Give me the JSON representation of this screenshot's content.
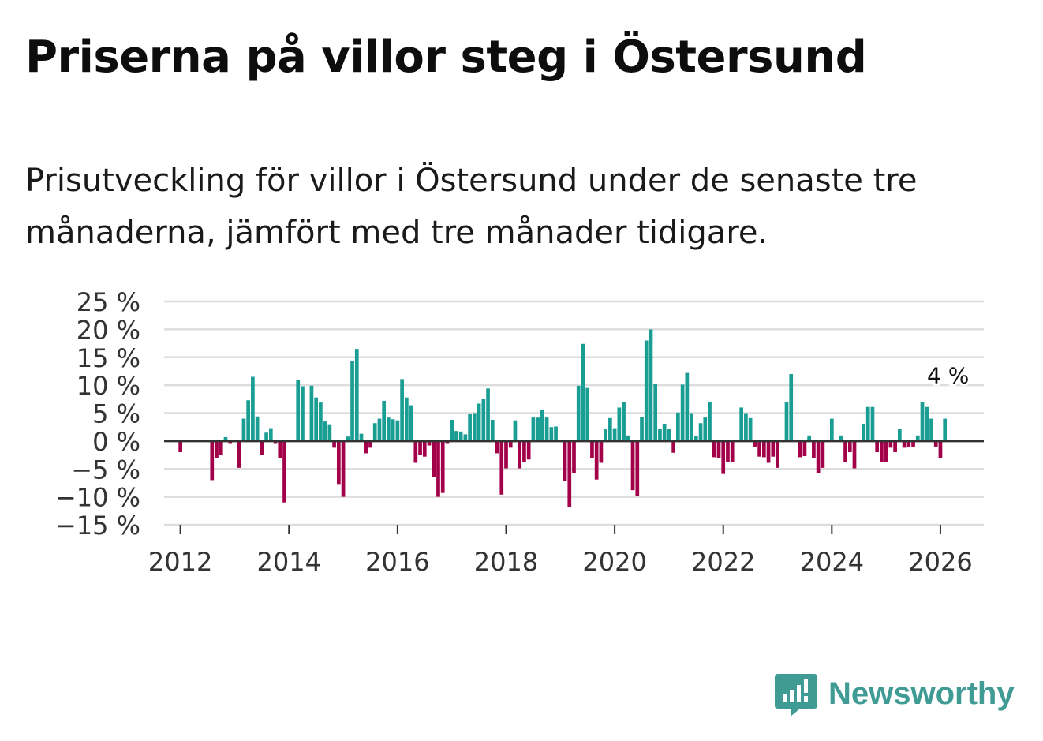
{
  "title": "Priserna på villor steg i Östersund",
  "subtitle": "Prisutveckling för villor i Östersund under de senaste tre månaderna, jämfört med tre månader tidigare.",
  "brand": "Newsworthy",
  "colors": {
    "positive": "#1a9e94",
    "negative": "#a3004a",
    "grid": "#dddddd",
    "zero": "#333333",
    "brand": "#3f9b94"
  },
  "chart_data": {
    "type": "bar",
    "unit": " %",
    "ylim": [
      -15,
      25
    ],
    "yticks": [
      25,
      20,
      15,
      10,
      5,
      0,
      -5,
      -10,
      -15
    ],
    "ytick_labels": [
      "25 %",
      "20 %",
      "15 %",
      "10 %",
      "5 %",
      "0 %",
      "−5 %",
      "−10 %",
      "−15 %"
    ],
    "xlim": [
      2011.7,
      2026.8
    ],
    "xticks": [
      2012,
      2014,
      2016,
      2018,
      2020,
      2022,
      2024,
      2026
    ],
    "xtick_labels": [
      "2012",
      "2014",
      "2016",
      "2018",
      "2020",
      "2022",
      "2024",
      "2026"
    ],
    "annotation": {
      "label": "4 %",
      "x": 2026.0833,
      "value": 4
    },
    "series": [
      {
        "name": "Prisutveckling",
        "x": [
          2011.9167,
          2012.0,
          2012.0833,
          2012.1667,
          2012.25,
          2012.3333,
          2012.4167,
          2012.5,
          2012.5833,
          2012.6667,
          2012.75,
          2012.8333,
          2012.9167,
          2013.0,
          2013.0833,
          2013.1667,
          2013.25,
          2013.3333,
          2013.4167,
          2013.5,
          2013.5833,
          2013.6667,
          2013.75,
          2013.8333,
          2013.9167,
          2014.0,
          2014.0833,
          2014.1667,
          2014.25,
          2014.3333,
          2014.4167,
          2014.5,
          2014.5833,
          2014.6667,
          2014.75,
          2014.8333,
          2014.9167,
          2015.0,
          2015.0833,
          2015.1667,
          2015.25,
          2015.3333,
          2015.4167,
          2015.5,
          2015.5833,
          2015.6667,
          2015.75,
          2015.8333,
          2015.9167,
          2016.0,
          2016.0833,
          2016.1667,
          2016.25,
          2016.3333,
          2016.4167,
          2016.5,
          2016.5833,
          2016.6667,
          2016.75,
          2016.8333,
          2016.9167,
          2017.0,
          2017.0833,
          2017.1667,
          2017.25,
          2017.3333,
          2017.4167,
          2017.5,
          2017.5833,
          2017.6667,
          2017.75,
          2017.8333,
          2017.9167,
          2018.0,
          2018.0833,
          2018.1667,
          2018.25,
          2018.3333,
          2018.4167,
          2018.5,
          2018.5833,
          2018.6667,
          2018.75,
          2018.8333,
          2018.9167,
          2019.0,
          2019.0833,
          2019.1667,
          2019.25,
          2019.3333,
          2019.4167,
          2019.5,
          2019.5833,
          2019.6667,
          2019.75,
          2019.8333,
          2019.9167,
          2020.0,
          2020.0833,
          2020.1667,
          2020.25,
          2020.3333,
          2020.4167,
          2020.5,
          2020.5833,
          2020.6667,
          2020.75,
          2020.8333,
          2020.9167,
          2021.0,
          2021.0833,
          2021.1667,
          2021.25,
          2021.3333,
          2021.4167,
          2021.5,
          2021.5833,
          2021.6667,
          2021.75,
          2021.8333,
          2021.9167,
          2022.0,
          2022.0833,
          2022.1667,
          2022.25,
          2022.3333,
          2022.4167,
          2022.5,
          2022.5833,
          2022.6667,
          2022.75,
          2022.8333,
          2022.9167,
          2023.0,
          2023.0833,
          2023.1667,
          2023.25,
          2023.3333,
          2023.4167,
          2023.5,
          2023.5833,
          2023.6667,
          2023.75,
          2023.8333,
          2023.9167,
          2024.0,
          2024.0833,
          2024.1667,
          2024.25,
          2024.3333,
          2024.4167,
          2024.5,
          2024.5833,
          2024.6667,
          2024.75,
          2024.8333,
          2024.9167,
          2025.0,
          2025.0833,
          2025.1667,
          2025.25,
          2025.3333,
          2025.4167,
          2025.5,
          2025.5833,
          2025.6667,
          2025.75,
          2025.8333,
          2025.9167,
          2026.0,
          2026.0833
        ],
        "values": [
          0,
          -2,
          0,
          0,
          0,
          0,
          0,
          0,
          -7,
          -3,
          -2.5,
          0.7,
          -0.5,
          0,
          -4.8,
          4,
          7.3,
          11.5,
          4.4,
          -2.5,
          1.5,
          2.3,
          -0.5,
          -3.1,
          -11,
          0,
          0,
          11,
          9.8,
          0,
          9.9,
          7.8,
          6.9,
          3.5,
          3,
          -1.2,
          -7.7,
          -10,
          0.8,
          14.3,
          16.5,
          1.3,
          -2.2,
          -1.2,
          3.2,
          4,
          7.2,
          4.2,
          3.9,
          3.7,
          11.1,
          7.8,
          6.4,
          -3.9,
          -2.5,
          -2.8,
          -0.8,
          -6.5,
          -10,
          -9.3,
          -0.5,
          3.8,
          1.8,
          1.7,
          1.2,
          4.8,
          5,
          6.7,
          7.6,
          9.4,
          3.8,
          -2.2,
          -9.6,
          -4.9,
          -1.2,
          3.7,
          -4.9,
          -3.8,
          -3.3,
          4.2,
          4.2,
          5.6,
          4.2,
          2.5,
          2.6,
          0,
          -7.1,
          -11.8,
          -5.7,
          9.9,
          17.4,
          9.5,
          -3.1,
          -6.9,
          -3.9,
          2.1,
          4.1,
          2.3,
          6,
          7,
          1,
          -8.8,
          -9.8,
          4.3,
          18,
          20,
          10.3,
          2.2,
          3.1,
          2.1,
          -2.1,
          5.1,
          10.1,
          12.2,
          5,
          0.9,
          3.2,
          4.2,
          7,
          -2.9,
          -3,
          -5.9,
          -3.8,
          -3.8,
          0,
          6,
          5,
          4.1,
          -1,
          -2.8,
          -2.9,
          -3.9,
          -2.8,
          -4.8,
          0,
          7,
          12,
          0,
          -2.9,
          -2.7,
          1,
          -3.1,
          -5.8,
          -4.8,
          0,
          4,
          0,
          1,
          -3.8,
          -2,
          -4.9,
          0,
          3.1,
          6.1,
          6.1,
          -2,
          -3.8,
          -3.8,
          -1.2,
          -2,
          2.1,
          -1.2,
          -1,
          -1,
          1,
          7,
          6.1,
          4,
          -1,
          -3,
          4
        ]
      }
    ]
  }
}
